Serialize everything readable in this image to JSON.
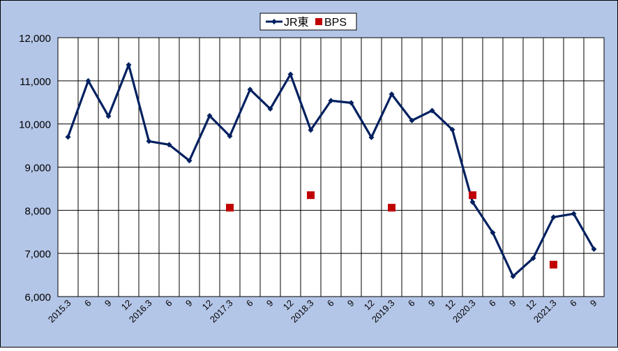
{
  "chart_data": {
    "type": "line",
    "title": "",
    "xlabel": "",
    "ylabel": "",
    "ylim": [
      6000,
      12000
    ],
    "yticks": [
      6000,
      7000,
      8000,
      9000,
      10000,
      11000,
      12000
    ],
    "ytick_labels": [
      "6,000",
      "7,000",
      "8,000",
      "9,000",
      "10,000",
      "11,000",
      "12,000"
    ],
    "categories": [
      "2015.3",
      "6",
      "9",
      "12",
      "2016.3",
      "6",
      "9",
      "12",
      "2017.3",
      "6",
      "9",
      "12",
      "2018.3",
      "6",
      "9",
      "12",
      "2019.3",
      "6",
      "9",
      "12",
      "2020.3",
      "6",
      "9",
      "12",
      "2021.3",
      "6",
      "9"
    ],
    "grid": true,
    "legend_position": "top-center",
    "colors": {
      "plot_background": "#b4c6e7",
      "line": "#002060",
      "marker_bps": "#c00000",
      "grid": "#000000"
    },
    "series": [
      {
        "name": "JR東",
        "style": "line-with-diamond-markers",
        "values": [
          9700,
          11000,
          10180,
          11370,
          9600,
          9520,
          9150,
          10190,
          9720,
          10800,
          10350,
          11150,
          9860,
          10540,
          10490,
          9690,
          10690,
          10080,
          10310,
          9870,
          8190,
          7480,
          6470,
          6890,
          7840,
          7920,
          7100
        ]
      },
      {
        "name": "BPS",
        "style": "square-markers",
        "values": [
          null,
          null,
          null,
          null,
          null,
          null,
          null,
          null,
          8060,
          null,
          null,
          null,
          8350,
          null,
          null,
          null,
          8060,
          null,
          null,
          null,
          8350,
          null,
          null,
          null,
          6740,
          null,
          null
        ]
      }
    ]
  }
}
